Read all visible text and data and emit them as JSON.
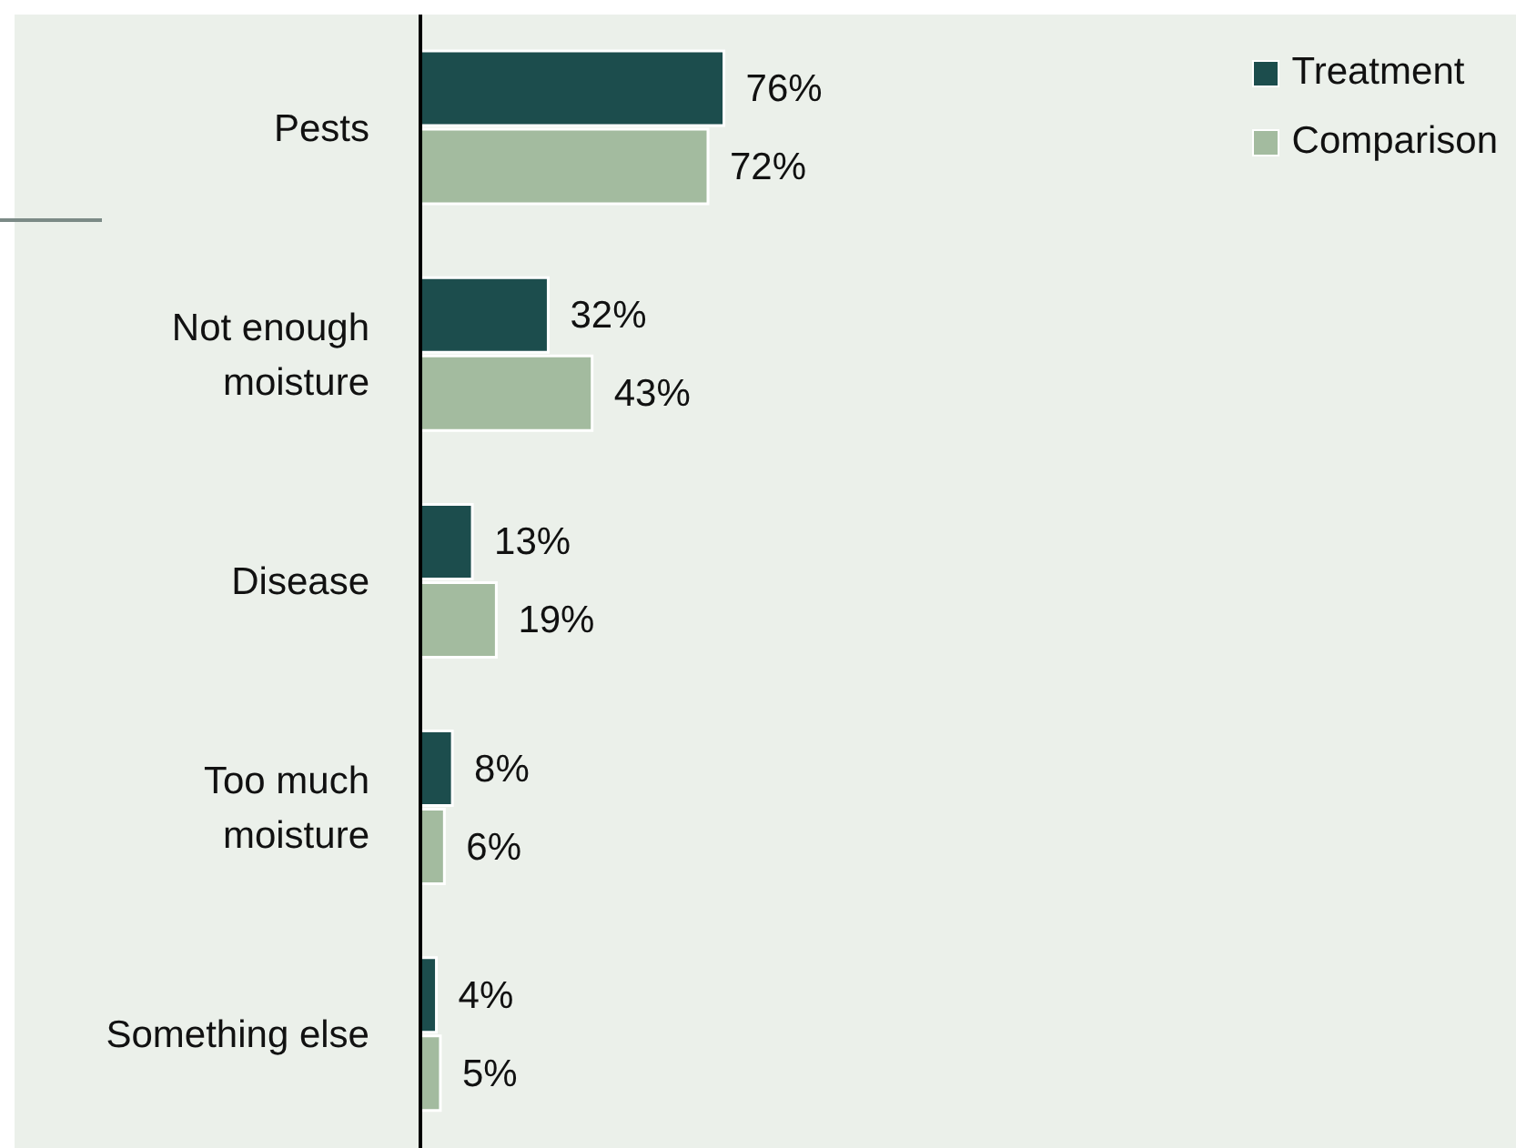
{
  "chart_data": {
    "type": "bar",
    "orientation": "horizontal",
    "categories": [
      "Pests",
      "Not enough moisture",
      "Disease",
      "Too much moisture",
      "Something else"
    ],
    "series": [
      {
        "name": "Treatment",
        "color": "#1c4d4d",
        "values": [
          76,
          32,
          13,
          8,
          4
        ],
        "value_labels": [
          "76%",
          "32%",
          "13%",
          "8%",
          "4%"
        ]
      },
      {
        "name": "Comparison",
        "color": "#a3bb9f",
        "values": [
          72,
          43,
          19,
          6,
          5
        ],
        "value_labels": [
          "72%",
          "43%",
          "19%",
          "6%",
          "5%"
        ]
      }
    ],
    "legend": "top right",
    "grid": false
  }
}
